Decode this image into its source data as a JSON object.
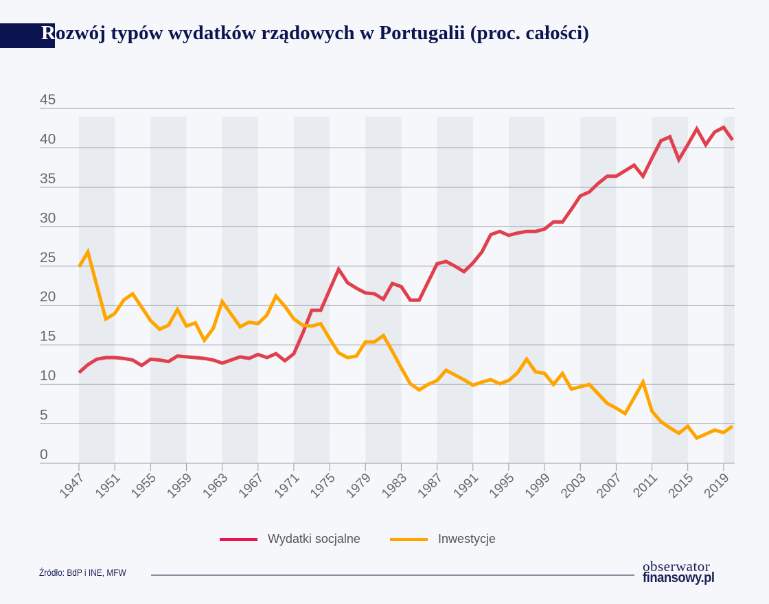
{
  "title_first_letter": "R",
  "title_rest": "ozwój typów wydatków rządowych w Portugalii (proc. całości)",
  "source": "Źródło: BdP i INE, MFW",
  "logo": {
    "line1": "obserwator",
    "line2": "finansowy.pl"
  },
  "chart_data": {
    "type": "line",
    "title": "Rozwój typów wydatków rządowych w Portugalii (proc. całości)",
    "xlabel": "",
    "ylabel": "",
    "ylim": [
      0,
      45
    ],
    "xlim": [
      1947,
      2020
    ],
    "yticks": [
      "0",
      "5",
      "10",
      "15",
      "20",
      "25",
      "30",
      "35",
      "40",
      "45"
    ],
    "xticks": [
      "1947",
      "1951",
      "1955",
      "1959",
      "1963",
      "1967",
      "1971",
      "1975",
      "1979",
      "1983",
      "1987",
      "1991",
      "1995",
      "1999",
      "2003",
      "2007",
      "2011",
      "2015",
      "2019"
    ],
    "grid": "horizontal",
    "background_bands": "alternating 4-year shaded bands",
    "legend_placement": "bottom-center",
    "x_start": 1947,
    "series": [
      {
        "name": "Wydatki socjalne",
        "color": "#e0404e",
        "values": [
          11.5,
          12.5,
          13.2,
          13.4,
          13.4,
          13.3,
          13.1,
          12.4,
          13.2,
          13.1,
          12.9,
          13.6,
          13.5,
          13.4,
          13.3,
          13.1,
          12.7,
          13.1,
          13.5,
          13.3,
          13.8,
          13.4,
          13.9,
          13.0,
          13.9,
          16.5,
          19.4,
          19.4,
          22.0,
          24.6,
          22.9,
          22.2,
          21.6,
          21.5,
          20.8,
          22.8,
          22.4,
          20.7,
          20.7,
          23.0,
          25.3,
          25.6,
          25.0,
          24.3,
          25.4,
          26.8,
          29.0,
          29.4,
          28.9,
          29.2,
          29.4,
          29.4,
          29.7,
          30.6,
          30.6,
          32.2,
          33.9,
          34.4,
          35.5,
          36.4,
          36.4,
          37.1,
          37.8,
          36.4,
          38.7,
          40.9,
          41.4,
          38.5,
          40.4,
          42.4,
          40.4,
          42.0,
          42.6,
          41.0
        ]
      },
      {
        "name": "Inwestycje",
        "color": "#ffa500",
        "values": [
          24.9,
          26.8,
          22.5,
          18.3,
          19.0,
          20.7,
          21.5,
          19.8,
          18.1,
          17.0,
          17.5,
          19.5,
          17.4,
          17.8,
          15.6,
          17.1,
          20.5,
          18.9,
          17.3,
          17.9,
          17.7,
          18.8,
          21.2,
          19.9,
          18.3,
          17.5,
          17.4,
          17.7,
          15.8,
          14.0,
          13.4,
          13.6,
          15.4,
          15.4,
          16.2,
          14.2,
          12.1,
          10.1,
          9.3,
          10.0,
          10.5,
          11.8,
          11.2,
          10.6,
          9.9,
          10.3,
          10.6,
          10.1,
          10.5,
          11.5,
          13.2,
          11.6,
          11.4,
          10.0,
          11.4,
          9.4,
          9.7,
          10.0,
          8.8,
          7.6,
          7.0,
          6.3,
          8.3,
          10.3,
          6.6,
          5.3,
          4.5,
          3.8,
          4.7,
          3.2,
          3.7,
          4.2,
          3.9,
          4.7
        ]
      }
    ]
  },
  "legend": [
    {
      "label": "Wydatki socjalne",
      "color": "#e8174f"
    },
    {
      "label": "Inwestycje",
      "color": "#ffa500"
    }
  ]
}
